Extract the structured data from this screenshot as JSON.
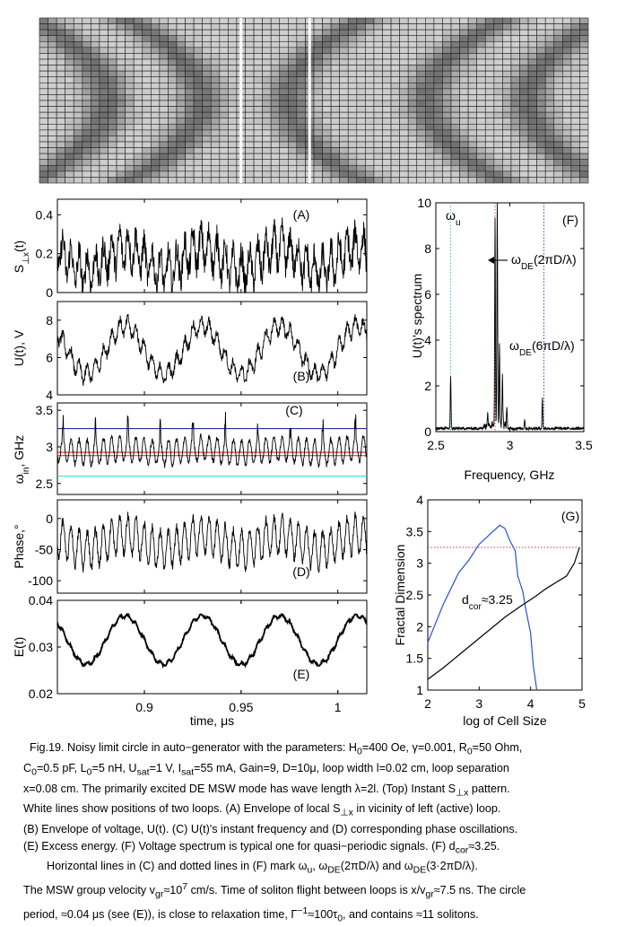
{
  "figure": {
    "label": "Fig.19."
  },
  "chart_data": [
    {
      "panel": "top",
      "type": "heatmap",
      "grid_cols": 64,
      "grid_rows": 28,
      "white_line_columns": [
        23.5,
        31.5
      ],
      "loop_centers": [
        7.4,
        18.4,
        28.6,
        44.8,
        56.5
      ],
      "colors": {
        "light": "#cfcfcf",
        "dark": "#6e6e6e",
        "grid": "#222222"
      }
    },
    {
      "panel": "A",
      "type": "line",
      "label": "(A)",
      "ylabel_main": "S",
      "ylabel_sub": "⊥x",
      "ylabel_tail": "(t)",
      "xlim": [
        0.855,
        1.015
      ],
      "ylim": [
        0,
        0.48
      ],
      "yticks": [
        "0",
        "0.2",
        "0.4"
      ],
      "ytick_values": [
        0,
        0.2,
        0.4
      ],
      "signal": {
        "base": 0.17,
        "fast_amp": 0.09,
        "fast_period": 0.0042,
        "slow_amp": 0.06,
        "slow_period": 0.04,
        "noise": 0.07,
        "min": 0,
        "max": 0.45
      }
    },
    {
      "panel": "B",
      "type": "line",
      "label": "(B)",
      "ylabel": "U(t), V",
      "xlim": [
        0.855,
        1.015
      ],
      "ylim": [
        4,
        9
      ],
      "yticks": [
        "4",
        "6",
        "8"
      ],
      "ytick_values": [
        4,
        6,
        8
      ],
      "signal": {
        "base": 6.4,
        "fast_amp": 0.45,
        "fast_period": 0.0042,
        "slow_amp": 1.3,
        "slow_period": 0.04,
        "noise": 0.25,
        "min": 4.2,
        "max": 8.9
      }
    },
    {
      "panel": "C",
      "type": "line",
      "label": "(C)",
      "ylabel_main": "ω",
      "ylabel_sub": "in",
      "ylabel_tail": ", GHz",
      "xlim": [
        0.855,
        1.015
      ],
      "ylim": [
        2.35,
        3.6
      ],
      "yticks": [
        "2.5",
        "3",
        "3.5"
      ],
      "ytick_values": [
        2.5,
        3.0,
        3.5
      ],
      "hlines": [
        {
          "value": 3.25,
          "color": "#2b2b9e"
        },
        {
          "value": 2.925,
          "color": "#e11b1b"
        },
        {
          "value": 2.88,
          "color": "#e11b1b"
        },
        {
          "value": 2.6,
          "color": "#36e0e0"
        }
      ],
      "signal": {
        "base": 2.95,
        "fast_amp": 0.17,
        "fast_period": 0.0042,
        "slow_amp": 0.03,
        "slow_period": 0.04,
        "noise": 0.04,
        "spike_every": 4,
        "spike_height": 0.35,
        "min": 2.7,
        "max": 3.55
      }
    },
    {
      "panel": "D",
      "type": "line",
      "label": "(D)",
      "ylabel": "Phase,°",
      "xlim": [
        0.855,
        1.015
      ],
      "ylim": [
        -120,
        30
      ],
      "yticks": [
        "-100",
        "-50",
        "0"
      ],
      "ytick_values": [
        -100,
        -50,
        0
      ],
      "signal": {
        "base": -38,
        "fast_amp": 30,
        "fast_period": 0.0042,
        "slow_amp": 12,
        "slow_period": 0.04,
        "noise": 8,
        "min": -105,
        "max": 22
      }
    },
    {
      "panel": "E",
      "type": "line",
      "label": "(E)",
      "ylabel": "E(t)",
      "xlabel": "time, μs",
      "xlim": [
        0.855,
        1.015
      ],
      "ylim": [
        0.02,
        0.04
      ],
      "xticks": [
        "0.9",
        "0.95",
        "1"
      ],
      "xtick_values": [
        0.9,
        0.95,
        1.0
      ],
      "yticks": [
        "0.02",
        "0.03",
        "0.04"
      ],
      "ytick_values": [
        0.02,
        0.03,
        0.04
      ],
      "signal": {
        "base": 0.0315,
        "fast_amp": 0.0004,
        "fast_period": 0.0042,
        "slow_amp": 0.0052,
        "slow_period": 0.04,
        "noise": 0.0002,
        "min": 0.026,
        "max": 0.037
      }
    },
    {
      "panel": "F",
      "type": "line",
      "label": "(F)",
      "ylabel": "U(t)'s spectrum",
      "xlabel": "Frequency, GHz",
      "xlim": [
        2.5,
        3.5
      ],
      "ylim": [
        0,
        10
      ],
      "xticks": [
        "2.5",
        "3",
        "3.5"
      ],
      "xtick_values": [
        2.5,
        3.0,
        3.5
      ],
      "yticks": [
        "0",
        "2",
        "4",
        "6",
        "8",
        "10"
      ],
      "ytick_values": [
        0,
        2,
        4,
        6,
        8,
        10
      ],
      "vlines": [
        {
          "value": 2.6,
          "color": "#36c8c8"
        },
        {
          "value": 2.9,
          "color": "#d23c3c"
        },
        {
          "value": 3.23,
          "color": "#4040d0"
        }
      ],
      "peaks": [
        [
          2.6,
          2.3
        ],
        [
          2.9,
          9.0
        ],
        [
          2.915,
          10.0
        ],
        [
          2.93,
          3.5
        ],
        [
          2.95,
          2.2
        ],
        [
          3.22,
          1.3
        ],
        [
          2.98,
          0.9
        ],
        [
          2.85,
          0.6
        ],
        [
          3.1,
          0.4
        ]
      ],
      "annotations": {
        "omega_u": {
          "main": "ω",
          "sub": "u"
        },
        "omega_de1": {
          "main": "ω",
          "sub": "DE",
          "tail": "(2πD/λ)"
        },
        "omega_de2": {
          "main": "ω",
          "sub": "DE",
          "tail": "(6πD/λ)"
        }
      }
    },
    {
      "panel": "G",
      "type": "line",
      "label": "(G)",
      "ylabel": "Fractal Dimension",
      "xlabel": "log of Cell Size",
      "xlim": [
        2,
        5
      ],
      "ylim": [
        1,
        4
      ],
      "xticks": [
        "2",
        "3",
        "4",
        "5"
      ],
      "xtick_values": [
        2,
        3,
        4,
        5
      ],
      "yticks": [
        "1",
        "1.5",
        "2",
        "2.5",
        "3",
        "3.5",
        "4"
      ],
      "ytick_values": [
        1,
        1.5,
        2,
        2.5,
        3,
        3.5,
        4
      ],
      "hline": {
        "value": 3.25,
        "color": "#c04040"
      },
      "annotation": {
        "main": "d",
        "sub": "cor",
        "tail": "≈3.25"
      },
      "series": [
        {
          "color": "#2850d8",
          "x": [
            2.0,
            2.15,
            2.3,
            2.45,
            2.6,
            2.8,
            3.0,
            3.2,
            3.4,
            3.5,
            3.6,
            3.7,
            3.75,
            3.85,
            3.9,
            4.0,
            4.05,
            4.12
          ],
          "y": [
            1.75,
            2.05,
            2.35,
            2.6,
            2.85,
            3.05,
            3.3,
            3.45,
            3.6,
            3.55,
            3.35,
            3.2,
            2.8,
            2.55,
            2.3,
            1.9,
            1.4,
            1.0
          ]
        },
        {
          "color": "#000000",
          "x": [
            2.0,
            2.3,
            2.6,
            2.9,
            3.2,
            3.5,
            3.8,
            4.1,
            4.3,
            4.5,
            4.7,
            4.85,
            4.95
          ],
          "y": [
            1.17,
            1.35,
            1.55,
            1.75,
            1.95,
            2.15,
            2.32,
            2.48,
            2.6,
            2.7,
            2.8,
            3.0,
            3.25
          ]
        }
      ]
    }
  ],
  "caption": {
    "line1": "Fig.19. Noisy limit circle in auto−generator with the parameters:  H",
    "l1_sub0": "0",
    "l1_a": "=400 Oe, γ=0.001, R",
    "l1_sub1": "0",
    "l1_b": "=50 Ohm,",
    "l2_a": "C",
    "l2_sub0": "0",
    "l2_b": "=0.5 pF, L",
    "l2_sub1": "0",
    "l2_c": "=5 nH, U",
    "l2_sub2": "sat",
    "l2_d": "=1 V, I",
    "l2_sub3": "sat",
    "l2_e": "=55 mA, Gain=9, D=10μ, loop width l=0.02 cm, loop separation",
    "l3": "x=0.08 cm. The primarily excited DE MSW mode has wave length λ=2l. (Top) Instant S",
    "l3_sub": "⊥x",
    "l3_b": " pattern.",
    "l4": "White lines show positions of two loops. (A) Envelope of local S",
    "l4_sub": "⊥x",
    "l4_b": " in vicinity of left (active) loop.",
    "l5": "(B) Envelope of voltage, U(t). (C) U(t)'s instant frequency and (D) corresponding phase oscillations.",
    "l6": "(E) Excess energy. (F) Voltage spectrum is typical one for quasi−periodic signals. (F) d",
    "l6_sub": "cor",
    "l6_b": "≈3.25.",
    "l7_a": "Horizontal lines in (C) and dotted lines in (F) mark ω",
    "l7_sub0": "u",
    "l7_b": ", ω",
    "l7_sub1": "DE",
    "l7_c": "(2πD/λ) and ω",
    "l7_sub2": "DE",
    "l7_d": "(3·2πD/λ).",
    "l8_a": "The MSW group velocity v",
    "l8_sub0": "gr",
    "l8_b": "≈10",
    "l8_sup": "7",
    "l8_c": " cm/s. Time of soliton flight between loops is x/v",
    "l8_sub1": "gr",
    "l8_d": "≈7.5 ns. The circle",
    "l9_a": "period, ≈0.04 μs (see (E)), is close to relaxation time, Γ",
    "l9_sup": "−1",
    "l9_b": "≈100τ",
    "l9_sub": "0",
    "l9_c": ", and contains ≈11 solitons."
  }
}
